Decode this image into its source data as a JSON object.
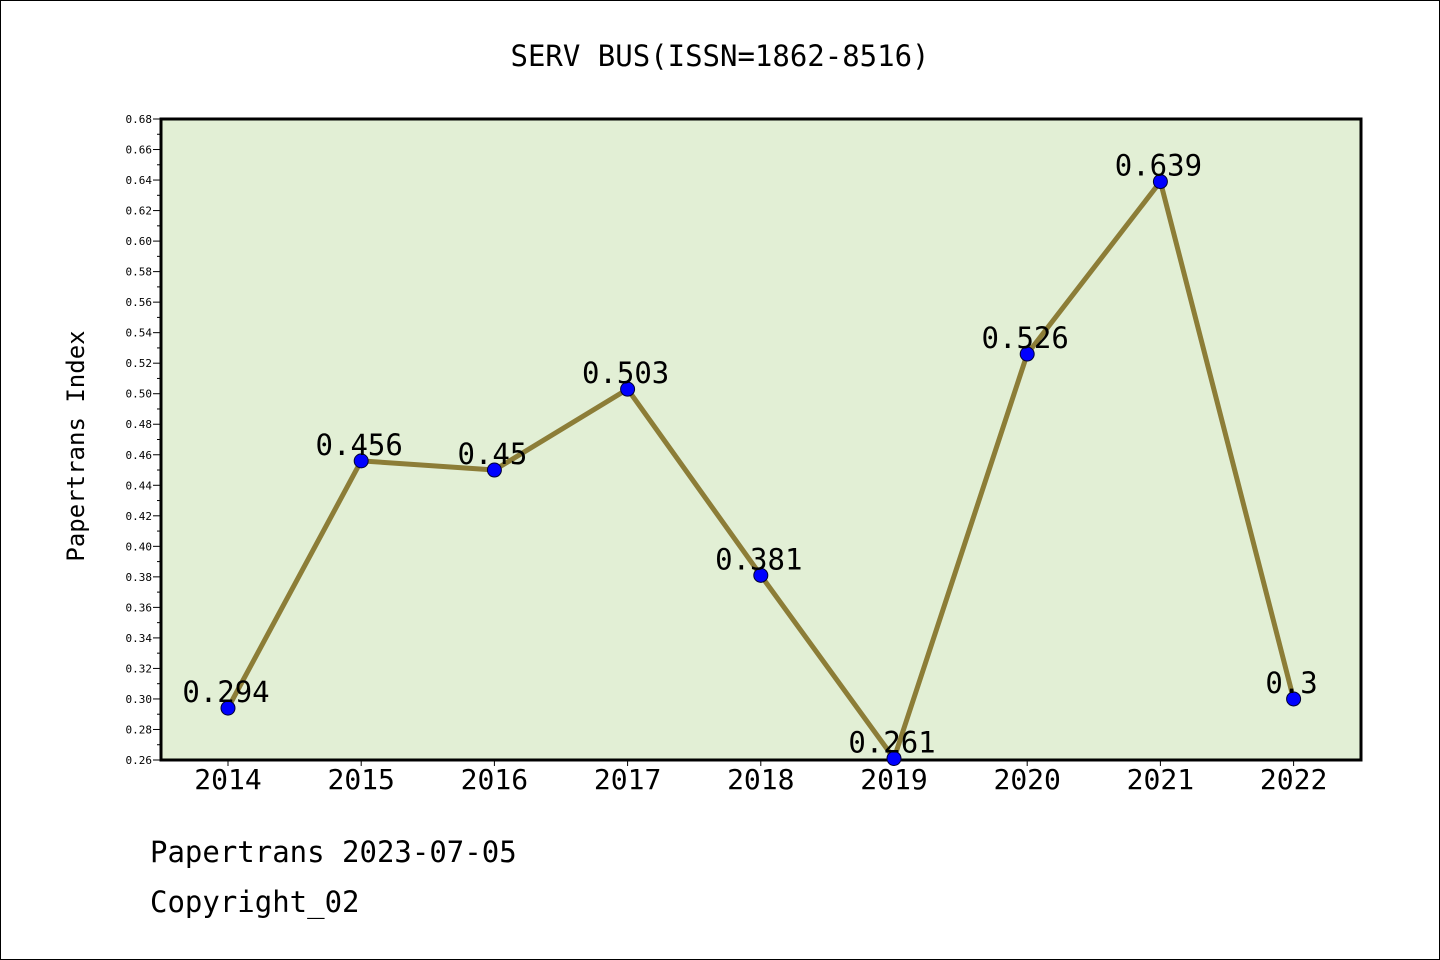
{
  "chart_data": {
    "type": "line",
    "title": "SERV BUS(ISSN=1862-8516)",
    "xlabel": "",
    "ylabel": "Papertrans Index",
    "categories": [
      "2014",
      "2015",
      "2016",
      "2017",
      "2018",
      "2019",
      "2020",
      "2021",
      "2022"
    ],
    "values": [
      0.294,
      0.456,
      0.45,
      0.503,
      0.381,
      0.261,
      0.526,
      0.639,
      0.3
    ],
    "data_labels": [
      "0.294",
      "0.456",
      "0.45",
      "0.503",
      "0.381",
      "0.261",
      "0.526",
      "0.639",
      "0.3"
    ],
    "ylim": [
      0.26,
      0.68
    ],
    "yticks": [
      "0.26",
      "0.28",
      "0.30",
      "0.32",
      "0.34",
      "0.36",
      "0.38",
      "0.40",
      "0.42",
      "0.44",
      "0.46",
      "0.48",
      "0.50",
      "0.52",
      "0.54",
      "0.56",
      "0.58",
      "0.60",
      "0.62",
      "0.64",
      "0.66",
      "0.68"
    ],
    "grid": false,
    "legend": "none",
    "colors": {
      "plot_background": "#e2efd5",
      "line": "#8c7d37",
      "marker": "#0000ff"
    }
  },
  "footer": {
    "line1": "Papertrans 2023-07-05",
    "line2": "Copyright_02"
  }
}
